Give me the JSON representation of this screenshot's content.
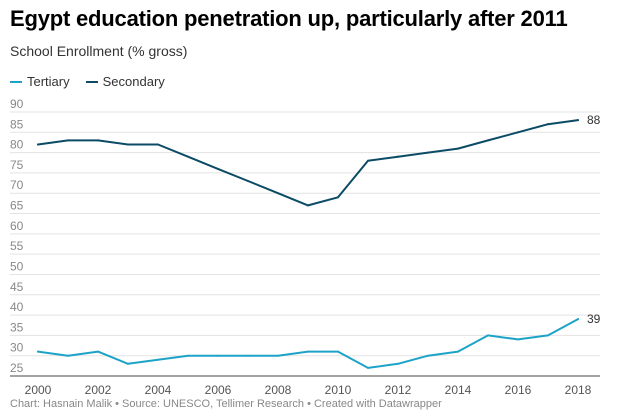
{
  "header": {
    "title": "Egypt education penetration up, particularly after 2011",
    "subtitle": "School Enrollment (% gross)"
  },
  "legend": {
    "items": [
      {
        "label": "Tertiary",
        "color": "#1ea3c8"
      },
      {
        "label": "Secondary",
        "color": "#0b4b66"
      }
    ]
  },
  "footer": {
    "text": "Chart: Hasnain Malik • Source: UNESCO, Tellimer Research • Created with Datawrapper"
  },
  "chart_data": {
    "type": "line",
    "title": "Egypt education penetration up, particularly after 2011",
    "subtitle": "School Enrollment (% gross)",
    "x": [
      2000,
      2001,
      2002,
      2003,
      2004,
      2005,
      2006,
      2007,
      2008,
      2009,
      2010,
      2011,
      2012,
      2013,
      2014,
      2015,
      2016,
      2017,
      2018
    ],
    "series": [
      {
        "name": "Tertiary",
        "color": "#1ea3c8",
        "values": [
          31,
          30,
          31,
          28,
          29,
          30,
          30,
          30,
          30,
          31,
          31,
          27,
          28,
          30,
          31,
          35,
          34,
          35,
          39
        ],
        "end_label": "39"
      },
      {
        "name": "Secondary",
        "color": "#0b4b66",
        "values": [
          82,
          83,
          83,
          82,
          82,
          79,
          76,
          73,
          70,
          67,
          69,
          78,
          79,
          80,
          81,
          83,
          85,
          87,
          88
        ],
        "end_label": "88"
      }
    ],
    "xticks": [
      "2000",
      "2002",
      "2004",
      "2006",
      "2008",
      "2010",
      "2012",
      "2014",
      "2016",
      "2018"
    ],
    "yticks": [
      "25",
      "30",
      "35",
      "40",
      "45",
      "50",
      "55",
      "60",
      "65",
      "70",
      "75",
      "80",
      "85",
      "90"
    ],
    "xlim": [
      2000,
      2018
    ],
    "ylim": [
      25,
      90
    ],
    "grid": true,
    "legend": "top-left"
  }
}
